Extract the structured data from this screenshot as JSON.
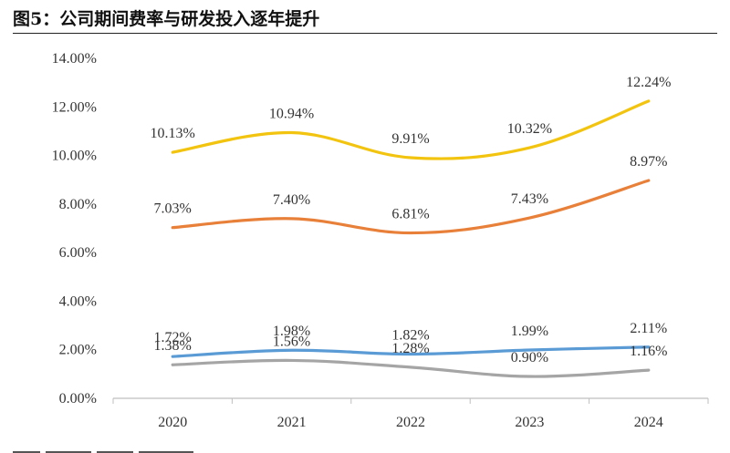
{
  "figure": {
    "title": "图5：公司期间费率与研发投入逐年提升"
  },
  "colors": {
    "series_yellow": "#F2C40F",
    "series_orange": "#E8803A",
    "series_blue": "#5B9BD5",
    "series_gray": "#A5A5A5",
    "axis": "#BFBFBF",
    "text": "#333333"
  },
  "chart_data": {
    "type": "line",
    "x": [
      "2020",
      "2021",
      "2022",
      "2023",
      "2024"
    ],
    "ylim": [
      0,
      14
    ],
    "y_ticks": [
      "0.00%",
      "2.00%",
      "4.00%",
      "6.00%",
      "8.00%",
      "10.00%",
      "12.00%",
      "14.00%"
    ],
    "grid": false,
    "legend": "none",
    "smooth": true,
    "series": [
      {
        "color": "#F2C40F",
        "values": [
          10.13,
          10.94,
          9.91,
          10.32,
          12.24
        ],
        "labels": [
          "10.13%",
          "10.94%",
          "9.91%",
          "10.32%",
          "12.24%"
        ]
      },
      {
        "color": "#E8803A",
        "values": [
          7.03,
          7.4,
          6.81,
          7.43,
          8.97
        ],
        "labels": [
          "7.03%",
          "7.40%",
          "6.81%",
          "7.43%",
          "8.97%"
        ]
      },
      {
        "color": "#5B9BD5",
        "values": [
          1.72,
          1.98,
          1.82,
          1.99,
          2.11
        ],
        "labels": [
          "1.72%",
          "1.98%",
          "1.82%",
          "1.99%",
          "2.11%"
        ]
      },
      {
        "color": "#A5A5A5",
        "values": [
          1.38,
          1.56,
          1.28,
          0.9,
          1.16
        ],
        "labels": [
          "1.38%",
          "1.56%",
          "1.28%",
          "0.90%",
          "1.16%"
        ]
      }
    ]
  }
}
